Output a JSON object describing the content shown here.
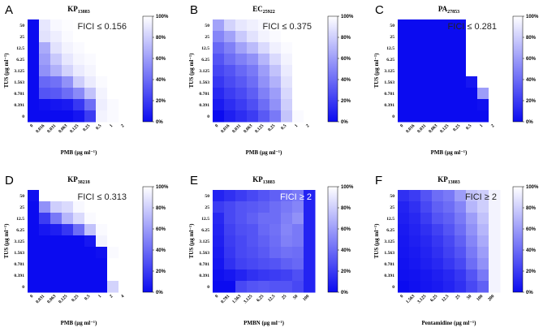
{
  "colors": {
    "low": "#0b0bf0",
    "high": "#ffffff"
  },
  "colorbar": {
    "ticks": [
      "0%",
      "20%",
      "40%",
      "60%",
      "80%",
      "100%"
    ]
  },
  "chart_data": [
    {
      "type": "heatmap",
      "letter": "A",
      "title_main": "KP",
      "title_sub": "13883",
      "annotation": "FICI ≤ 0.156",
      "xlabel": "PMB (μg ml⁻¹)",
      "ylabel": "TUS (μg ml⁻¹)",
      "x_ticks": [
        "0",
        "0.016",
        "0.031",
        "0.063",
        "0.125",
        "0.25",
        "0.5",
        "1",
        "2"
      ],
      "y_ticks": [
        "50",
        "25",
        "12.5",
        "6.25",
        "3.125",
        "1.563",
        "0.781",
        "0.391",
        "0"
      ],
      "values": [
        [
          0,
          90,
          97,
          99,
          100,
          100,
          100,
          100,
          100
        ],
        [
          0,
          88,
          93,
          98,
          100,
          100,
          100,
          100,
          100
        ],
        [
          0,
          65,
          88,
          95,
          98,
          100,
          100,
          100,
          100
        ],
        [
          0,
          60,
          78,
          90,
          96,
          98,
          100,
          100,
          100
        ],
        [
          0,
          55,
          68,
          82,
          92,
          96,
          100,
          100,
          100
        ],
        [
          0,
          38,
          42,
          55,
          80,
          92,
          98,
          100,
          100
        ],
        [
          0,
          30,
          32,
          40,
          52,
          75,
          95,
          100,
          100
        ],
        [
          0,
          2,
          4,
          6,
          18,
          40,
          93,
          98,
          100
        ],
        [
          0,
          0,
          0,
          0,
          4,
          20,
          95,
          98,
          100
        ]
      ]
    },
    {
      "type": "heatmap",
      "letter": "B",
      "title_main": "EC",
      "title_sub": "25922",
      "annotation": "FICI ≤ 0.375",
      "xlabel": "PMB (μg ml⁻¹)",
      "ylabel": "TUS (μg ml⁻¹)",
      "x_ticks": [
        "0",
        "0.016",
        "0.031",
        "0.063",
        "0.125",
        "0.25",
        "0.5",
        "1",
        "2"
      ],
      "y_ticks": [
        "50",
        "25",
        "12.5",
        "6.25",
        "3.125",
        "1.563",
        "0.781",
        "0.391",
        "0"
      ],
      "values": [
        [
          62,
          82,
          90,
          94,
          97,
          100,
          100,
          100,
          100
        ],
        [
          50,
          62,
          78,
          88,
          95,
          98,
          100,
          100,
          100
        ],
        [
          38,
          48,
          62,
          72,
          85,
          94,
          98,
          100,
          100
        ],
        [
          30,
          40,
          48,
          55,
          70,
          85,
          95,
          100,
          100
        ],
        [
          24,
          30,
          38,
          45,
          60,
          75,
          92,
          100,
          100
        ],
        [
          18,
          26,
          32,
          40,
          55,
          68,
          88,
          100,
          100
        ],
        [
          12,
          20,
          26,
          34,
          48,
          60,
          84,
          100,
          100
        ],
        [
          6,
          14,
          20,
          28,
          40,
          55,
          80,
          100,
          100
        ],
        [
          0,
          8,
          14,
          20,
          32,
          45,
          76,
          98,
          100
        ]
      ]
    },
    {
      "type": "heatmap",
      "letter": "C",
      "title_main": "PA",
      "title_sub": "27853",
      "annotation": "FICI ≤ 0.281",
      "xlabel": "PMB (μg ml⁻¹)",
      "ylabel": "TUS (μg ml⁻¹)",
      "x_ticks": [
        "0",
        "0.016",
        "0.031",
        "0.063",
        "0.125",
        "0.25",
        "0.5",
        "1",
        "2"
      ],
      "y_ticks": [
        "50",
        "25",
        "12.5",
        "6.25",
        "3.125",
        "1.563",
        "0.781",
        "0.391",
        "0"
      ],
      "values": [
        [
          0,
          0,
          0,
          0,
          0,
          0,
          100,
          100,
          100
        ],
        [
          0,
          0,
          0,
          0,
          0,
          0,
          100,
          100,
          100
        ],
        [
          0,
          0,
          0,
          0,
          0,
          0,
          100,
          100,
          100
        ],
        [
          0,
          0,
          0,
          0,
          0,
          0,
          100,
          100,
          100
        ],
        [
          0,
          0,
          0,
          0,
          0,
          0,
          100,
          100,
          100
        ],
        [
          0,
          0,
          0,
          0,
          0,
          0,
          5,
          100,
          100
        ],
        [
          0,
          0,
          0,
          0,
          0,
          0,
          0,
          60,
          100
        ],
        [
          0,
          0,
          0,
          0,
          0,
          0,
          0,
          2,
          100
        ],
        [
          0,
          0,
          0,
          0,
          0,
          0,
          0,
          0,
          100
        ]
      ]
    },
    {
      "type": "heatmap",
      "letter": "D",
      "title_main": "KP",
      "title_sub": "38218",
      "annotation": "FICI ≤ 0.313",
      "xlabel": "PMB (μg ml⁻¹)",
      "ylabel": "TUS (μg ml⁻¹)",
      "x_ticks": [
        "0",
        "0.031",
        "0.063",
        "0.125",
        "0.25",
        "0.5",
        "1",
        "2",
        "4"
      ],
      "y_ticks": [
        "50",
        "25",
        "12.5",
        "6.25",
        "3.125",
        "1.563",
        "0.781",
        "0.391",
        "0"
      ],
      "values": [
        [
          2,
          100,
          100,
          100,
          100,
          100,
          100,
          100,
          100
        ],
        [
          0,
          55,
          80,
          85,
          97,
          100,
          100,
          100,
          100
        ],
        [
          0,
          20,
          45,
          70,
          85,
          98,
          100,
          100,
          100
        ],
        [
          0,
          5,
          8,
          18,
          40,
          75,
          98,
          100,
          100
        ],
        [
          0,
          0,
          0,
          0,
          0,
          5,
          95,
          100,
          100
        ],
        [
          0,
          0,
          0,
          0,
          0,
          0,
          2,
          98,
          100
        ],
        [
          0,
          0,
          0,
          0,
          0,
          0,
          0,
          100,
          100
        ],
        [
          0,
          0,
          0,
          0,
          0,
          0,
          0,
          100,
          100
        ],
        [
          0,
          0,
          0,
          0,
          0,
          0,
          0,
          82,
          100
        ]
      ]
    },
    {
      "type": "heatmap",
      "letter": "E",
      "title_main": "KP",
      "title_sub": "13883",
      "annotation": "FICI ≥ 2",
      "xlabel": "PMBN (μg ml⁻¹)",
      "ylabel": "TUS (μg ml⁻¹)",
      "x_ticks": [
        "0",
        "0.781",
        "1.563",
        "3.125",
        "6.25",
        "12.5",
        "25",
        "50",
        "100"
      ],
      "y_ticks": [
        "50",
        "25",
        "12.5",
        "6.25",
        "3.125",
        "1.563",
        "0.781",
        "0.391",
        "0"
      ],
      "values": [
        [
          10,
          15,
          20,
          25,
          30,
          35,
          40,
          45,
          10
        ],
        [
          20,
          25,
          30,
          32,
          35,
          40,
          45,
          50,
          10
        ],
        [
          12,
          25,
          30,
          35,
          40,
          40,
          48,
          55,
          10
        ],
        [
          10,
          22,
          28,
          30,
          38,
          42,
          50,
          45,
          10
        ],
        [
          8,
          20,
          25,
          30,
          35,
          40,
          48,
          45,
          10
        ],
        [
          6,
          18,
          25,
          28,
          32,
          38,
          42,
          40,
          10
        ],
        [
          4,
          15,
          22,
          25,
          28,
          30,
          35,
          38,
          10
        ],
        [
          2,
          5,
          10,
          15,
          18,
          20,
          22,
          28,
          10
        ],
        [
          0,
          0,
          25,
          30,
          32,
          30,
          30,
          25,
          10
        ]
      ]
    },
    {
      "type": "heatmap",
      "letter": "F",
      "title_main": "KP",
      "title_sub": "13883",
      "annotation": "FICI ≥ 2",
      "xlabel": "Pentamidine (μg ml⁻¹)",
      "ylabel": "TUS (μg ml⁻¹)",
      "x_ticks": [
        "0",
        "1.563",
        "3.125",
        "6.25",
        "12.5",
        "25",
        "50",
        "100",
        "200"
      ],
      "y_ticks": [
        "50",
        "25",
        "12.5",
        "6.25",
        "3.125",
        "1.563",
        "0.781",
        "0.391",
        "0"
      ],
      "values": [
        [
          15,
          20,
          30,
          40,
          45,
          60,
          75,
          80,
          95
        ],
        [
          10,
          15,
          25,
          35,
          40,
          50,
          70,
          80,
          95
        ],
        [
          8,
          12,
          20,
          30,
          35,
          45,
          60,
          75,
          95
        ],
        [
          6,
          10,
          15,
          22,
          30,
          40,
          55,
          70,
          95
        ],
        [
          5,
          8,
          12,
          18,
          25,
          35,
          50,
          65,
          95
        ],
        [
          4,
          6,
          10,
          15,
          22,
          30,
          45,
          60,
          95
        ],
        [
          3,
          5,
          8,
          12,
          18,
          25,
          40,
          55,
          95
        ],
        [
          2,
          3,
          5,
          8,
          12,
          18,
          30,
          45,
          95
        ],
        [
          0,
          2,
          4,
          6,
          10,
          15,
          25,
          35,
          95
        ]
      ]
    }
  ]
}
